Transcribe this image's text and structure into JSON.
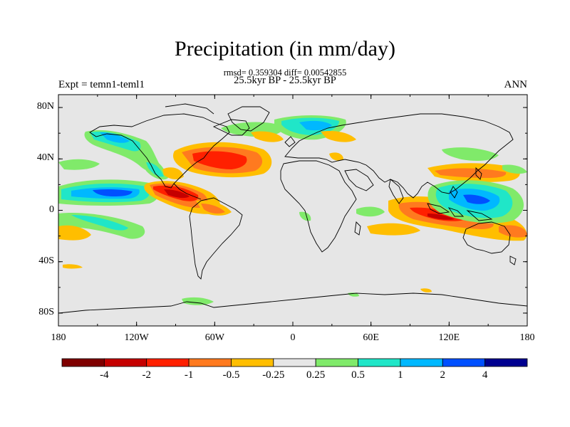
{
  "title": "Precipitation (in mm/day)",
  "stats_text": "rmsd= 0.359304 diff= 0.00542855",
  "period_text": "25.5kyr BP - 25.5kyr BP",
  "experiment_label": "Expt = temn1-teml1",
  "season_label": "ANN",
  "map": {
    "projection": "cylindrical equidistant",
    "lon_range": [
      -180,
      180
    ],
    "lat_range": [
      -90,
      90
    ],
    "background_color": "#e6e6e6",
    "lat_tick_labels": [
      "80N",
      "40N",
      "0",
      "40S",
      "80S"
    ],
    "lat_tick_values": [
      80,
      40,
      0,
      -40,
      -80
    ],
    "lon_tick_labels": [
      "180",
      "120W",
      "60W",
      "0",
      "60E",
      "120E",
      "180"
    ],
    "lon_tick_values": [
      -180,
      -120,
      -60,
      0,
      60,
      120,
      180
    ]
  },
  "colorbar": {
    "colors": [
      "#7f0000",
      "#c50000",
      "#ff2000",
      "#ff7a1f",
      "#ffbe00",
      "#e6e6e6",
      "#80ea6a",
      "#20e6c8",
      "#00b8ff",
      "#0050ff",
      "#000090"
    ],
    "labels": [
      "-4",
      "-2",
      "-1",
      "-0.5",
      "-0.25",
      "0.25",
      "0.5",
      "1",
      "2",
      "4"
    ]
  }
}
